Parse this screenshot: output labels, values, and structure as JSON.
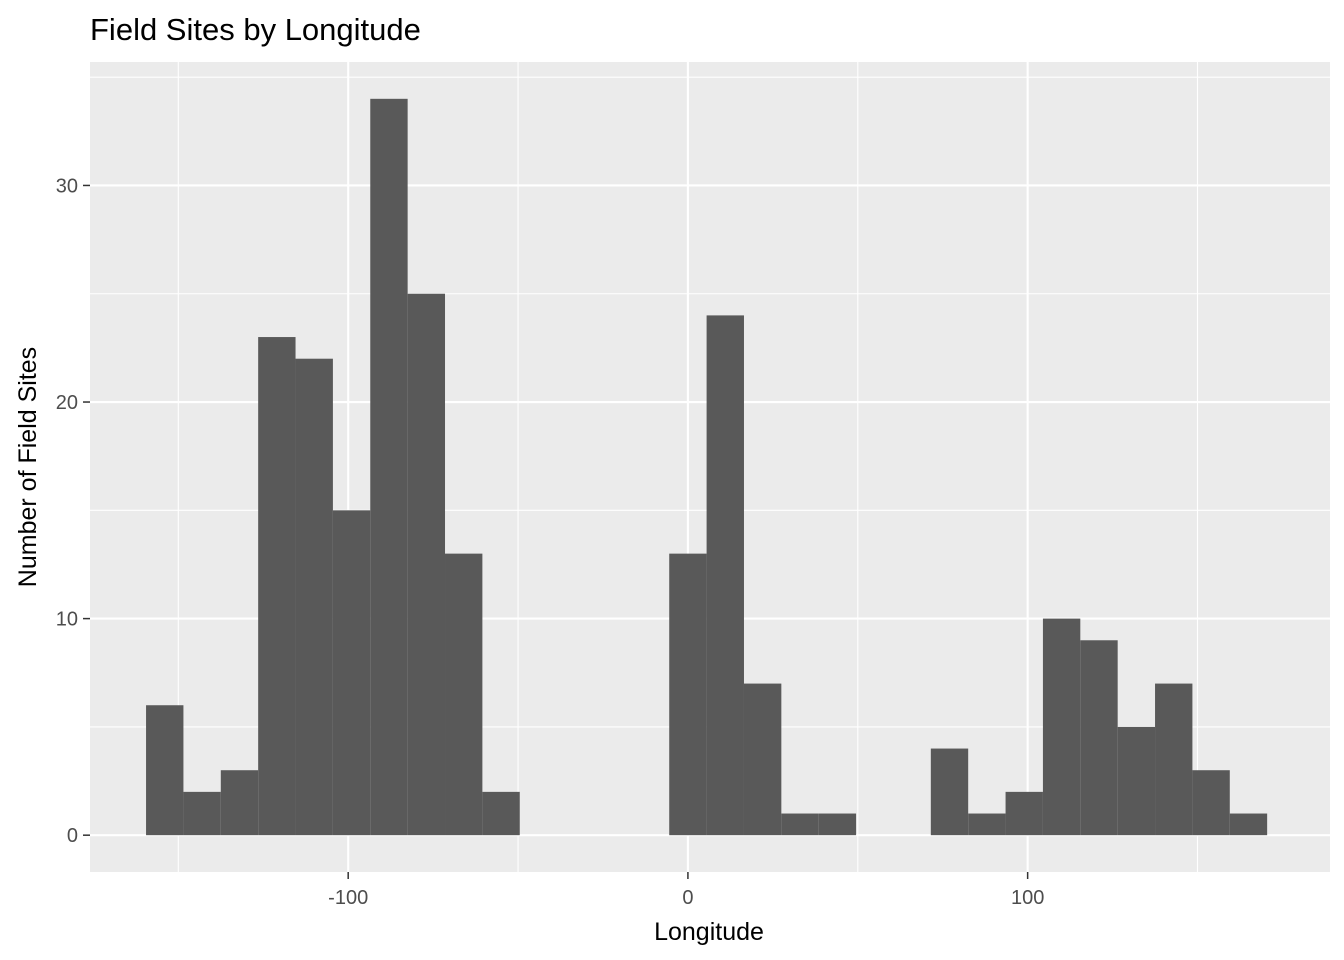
{
  "chart_data": {
    "type": "bar",
    "subtype": "histogram",
    "title": "Field Sites by Longitude",
    "xlabel": "Longitude",
    "ylabel": "Number of Field Sites",
    "xlim": [
      -176,
      189
    ],
    "ylim": [
      -1.7,
      35.7
    ],
    "xticks": [
      -100,
      0,
      100
    ],
    "yticks": [
      0,
      10,
      20,
      30
    ],
    "grid": true,
    "legend": "none",
    "colors": {
      "bar": "#595959",
      "panel": "#ebebeb",
      "grid": "#ffffff",
      "tick_text": "#4d4d4d"
    },
    "bin_width": 11,
    "bins": [
      {
        "x0": -159.5,
        "x1": -148.5,
        "count": 6
      },
      {
        "x0": -148.5,
        "x1": -137.5,
        "count": 2
      },
      {
        "x0": -137.5,
        "x1": -126.5,
        "count": 3
      },
      {
        "x0": -126.5,
        "x1": -115.5,
        "count": 23
      },
      {
        "x0": -115.5,
        "x1": -104.5,
        "count": 22
      },
      {
        "x0": -104.5,
        "x1": -93.5,
        "count": 15
      },
      {
        "x0": -93.5,
        "x1": -82.5,
        "count": 34
      },
      {
        "x0": -82.5,
        "x1": -71.5,
        "count": 25
      },
      {
        "x0": -71.5,
        "x1": -60.5,
        "count": 13
      },
      {
        "x0": -60.5,
        "x1": -49.5,
        "count": 2
      },
      {
        "x0": -5.5,
        "x1": 5.5,
        "count": 13
      },
      {
        "x0": 5.5,
        "x1": 16.5,
        "count": 24
      },
      {
        "x0": 16.5,
        "x1": 27.5,
        "count": 7
      },
      {
        "x0": 27.5,
        "x1": 38.5,
        "count": 1
      },
      {
        "x0": 38.5,
        "x1": 49.5,
        "count": 1
      },
      {
        "x0": 71.5,
        "x1": 82.5,
        "count": 4
      },
      {
        "x0": 82.5,
        "x1": 93.5,
        "count": 1
      },
      {
        "x0": 93.5,
        "x1": 104.5,
        "count": 2
      },
      {
        "x0": 104.5,
        "x1": 115.5,
        "count": 10
      },
      {
        "x0": 115.5,
        "x1": 126.5,
        "count": 9
      },
      {
        "x0": 126.5,
        "x1": 137.5,
        "count": 5
      },
      {
        "x0": 137.5,
        "x1": 148.5,
        "count": 7
      },
      {
        "x0": 148.5,
        "x1": 159.5,
        "count": 3
      },
      {
        "x0": 159.5,
        "x1": 170.5,
        "count": 1
      }
    ]
  }
}
